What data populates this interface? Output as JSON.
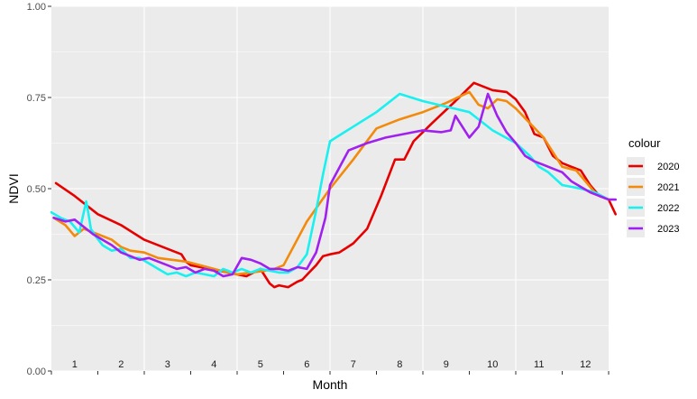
{
  "chart_data": {
    "type": "line",
    "xlabel": "Month",
    "ylabel": "NDVI",
    "xlim": [
      0,
      12
    ],
    "ylim": [
      0,
      1
    ],
    "y_ticks": [
      0,
      0.25,
      0.5,
      0.75,
      1
    ],
    "y_tick_labels": [
      "0.00",
      "0.25",
      "0.50",
      "0.75",
      "1.00"
    ],
    "month_labels": [
      "1",
      "2",
      "3",
      "4",
      "5",
      "6",
      "7",
      "8",
      "9",
      "10",
      "11",
      "12"
    ],
    "grid": true,
    "legend": {
      "title": "colour",
      "position": "right"
    },
    "series": [
      {
        "name": "2020",
        "color": "#e60000",
        "x": [
          0.1,
          0.5,
          1.0,
          1.5,
          2.0,
          2.5,
          2.8,
          2.9,
          3.0,
          3.4,
          3.8,
          4.2,
          4.5,
          4.7,
          4.8,
          4.9,
          5.1,
          5.3,
          5.4,
          5.55,
          5.7,
          5.85,
          6.0,
          6.2,
          6.5,
          6.8,
          7.1,
          7.4,
          7.6,
          7.8,
          8.2,
          8.7,
          9.1,
          9.5,
          9.8,
          10.0,
          10.2,
          10.4,
          10.6,
          10.8,
          11.0,
          11.2,
          11.4,
          11.6,
          11.8,
          12.0,
          12.15
        ],
        "y": [
          0.515,
          0.48,
          0.43,
          0.4,
          0.36,
          0.335,
          0.32,
          0.3,
          0.29,
          0.28,
          0.27,
          0.26,
          0.28,
          0.24,
          0.23,
          0.235,
          0.23,
          0.245,
          0.25,
          0.27,
          0.29,
          0.315,
          0.32,
          0.325,
          0.35,
          0.39,
          0.48,
          0.58,
          0.58,
          0.63,
          0.68,
          0.74,
          0.79,
          0.77,
          0.765,
          0.745,
          0.71,
          0.65,
          0.64,
          0.59,
          0.57,
          0.56,
          0.55,
          0.51,
          0.48,
          0.47,
          0.43
        ]
      },
      {
        "name": "2021",
        "color": "#f28a0c",
        "x": [
          0.05,
          0.3,
          0.5,
          0.7,
          0.9,
          1.1,
          1.3,
          1.5,
          1.7,
          2.0,
          2.3,
          2.6,
          2.9,
          3.2,
          3.5,
          3.8,
          4.0,
          4.3,
          4.6,
          4.8,
          5.0,
          5.5,
          6.0,
          6.5,
          7.0,
          7.5,
          8.0,
          8.5,
          9.0,
          9.2,
          9.4,
          9.6,
          9.8,
          10.0,
          10.3,
          10.6,
          10.8,
          11.0,
          11.3,
          11.5,
          11.7,
          12.0
        ],
        "y": [
          0.42,
          0.4,
          0.37,
          0.39,
          0.38,
          0.37,
          0.36,
          0.34,
          0.33,
          0.325,
          0.31,
          0.305,
          0.3,
          0.29,
          0.28,
          0.27,
          0.265,
          0.27,
          0.275,
          0.28,
          0.29,
          0.41,
          0.5,
          0.58,
          0.665,
          0.69,
          0.71,
          0.735,
          0.765,
          0.73,
          0.72,
          0.745,
          0.74,
          0.72,
          0.68,
          0.64,
          0.6,
          0.56,
          0.55,
          0.52,
          0.49,
          0.47
        ]
      },
      {
        "name": "2022",
        "color": "#19f0f0",
        "x": [
          0.0,
          0.2,
          0.4,
          0.6,
          0.75,
          0.8,
          0.85,
          0.95,
          1.1,
          1.3,
          1.5,
          1.7,
          1.9,
          2.1,
          2.3,
          2.5,
          2.7,
          2.9,
          3.1,
          3.3,
          3.5,
          3.7,
          3.9,
          4.1,
          4.3,
          4.5,
          4.7,
          4.9,
          5.1,
          5.3,
          5.5,
          5.7,
          5.85,
          6.0,
          6.5,
          7.0,
          7.5,
          8.0,
          8.5,
          9.0,
          9.5,
          10.0,
          10.3,
          10.5,
          10.7,
          11.0,
          11.2,
          11.4,
          11.7,
          12.0
        ],
        "y": [
          0.435,
          0.42,
          0.41,
          0.38,
          0.465,
          0.43,
          0.39,
          0.37,
          0.345,
          0.33,
          0.335,
          0.31,
          0.31,
          0.295,
          0.28,
          0.265,
          0.27,
          0.26,
          0.27,
          0.265,
          0.26,
          0.28,
          0.27,
          0.28,
          0.27,
          0.28,
          0.275,
          0.27,
          0.27,
          0.285,
          0.32,
          0.44,
          0.54,
          0.63,
          0.67,
          0.71,
          0.76,
          0.74,
          0.725,
          0.71,
          0.66,
          0.625,
          0.59,
          0.56,
          0.545,
          0.51,
          0.505,
          0.5,
          0.49,
          0.47
        ]
      },
      {
        "name": "2023",
        "color": "#a020f0",
        "x": [
          0.05,
          0.3,
          0.5,
          0.7,
          0.9,
          1.1,
          1.3,
          1.5,
          1.7,
          1.9,
          2.1,
          2.3,
          2.5,
          2.7,
          2.9,
          3.1,
          3.3,
          3.5,
          3.7,
          3.9,
          4.1,
          4.3,
          4.5,
          4.7,
          4.9,
          5.1,
          5.3,
          5.5,
          5.7,
          5.9,
          6.0,
          6.4,
          6.8,
          7.2,
          7.6,
          8.0,
          8.4,
          8.6,
          8.7,
          8.8,
          9.0,
          9.2,
          9.4,
          9.6,
          9.8,
          10.0,
          10.2,
          10.4,
          10.6,
          10.8,
          11.0,
          11.2,
          11.4,
          11.6,
          11.8,
          12.0,
          12.15
        ],
        "y": [
          0.42,
          0.41,
          0.415,
          0.395,
          0.375,
          0.36,
          0.345,
          0.325,
          0.315,
          0.305,
          0.31,
          0.3,
          0.29,
          0.28,
          0.285,
          0.27,
          0.28,
          0.275,
          0.26,
          0.265,
          0.31,
          0.305,
          0.295,
          0.28,
          0.28,
          0.275,
          0.285,
          0.28,
          0.325,
          0.42,
          0.51,
          0.605,
          0.625,
          0.64,
          0.65,
          0.66,
          0.655,
          0.66,
          0.7,
          0.68,
          0.64,
          0.67,
          0.76,
          0.7,
          0.655,
          0.625,
          0.59,
          0.575,
          0.565,
          0.555,
          0.545,
          0.52,
          0.505,
          0.49,
          0.48,
          0.47,
          0.47
        ]
      }
    ]
  }
}
